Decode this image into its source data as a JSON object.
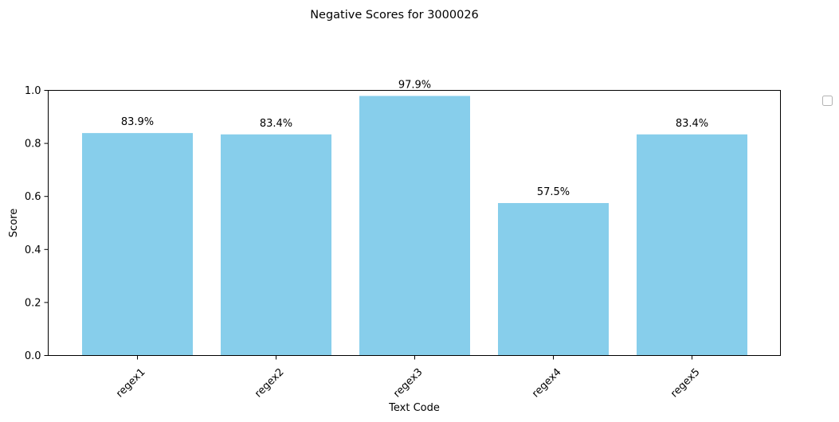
{
  "chart_data": {
    "type": "bar",
    "title": "Negative Scores for 3000026",
    "xlabel": "Text Code",
    "ylabel": "Score",
    "categories": [
      "regex1",
      "regex2",
      "regex3",
      "regex4",
      "regex5"
    ],
    "values": [
      0.839,
      0.834,
      0.979,
      0.575,
      0.834
    ],
    "data_labels": [
      "83.9%",
      "83.4%",
      "97.9%",
      "57.5%",
      "83.4%"
    ],
    "ylim": [
      0,
      1.0
    ],
    "yticks": [
      "0.0",
      "0.2",
      "0.4",
      "0.6",
      "0.8",
      "1.0"
    ],
    "grid": false,
    "legend": "top-right, outside plot, empty",
    "bar_color": "#87CEEB",
    "x_tick_rotation_deg": 45
  }
}
